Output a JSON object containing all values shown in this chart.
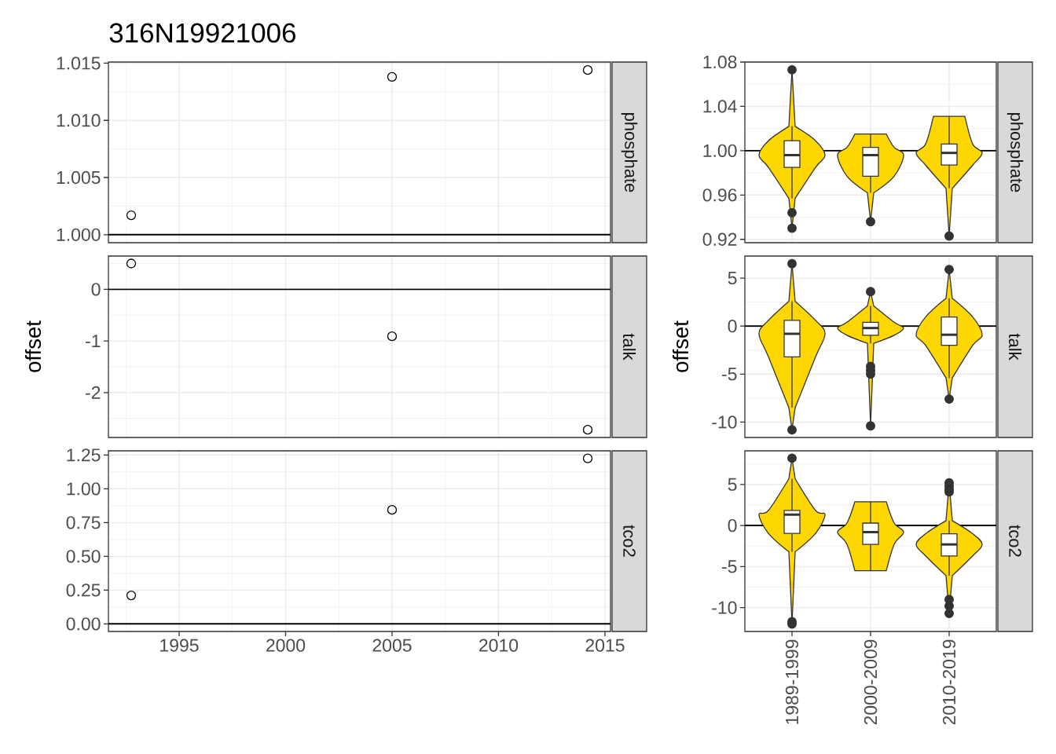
{
  "chart_data": [
    {
      "type": "scatter",
      "title": "316N19921006",
      "y2label": "phosphate",
      "x": [
        1992.75,
        2005.0,
        2014.19
      ],
      "values": [
        1.0017,
        1.0138,
        1.0144
      ],
      "color": "#000000",
      "marker": "circle",
      "xlim": [
        1991.68,
        2015.26
      ],
      "xticks": [
        1995,
        2000,
        2005,
        2010,
        2015
      ],
      "ylim": [
        0.9993,
        1.0151
      ],
      "yticks": [
        {
          "value": 1,
          "label": "1.000"
        },
        1.005,
        {
          "value": 1.01,
          "label": "1.010"
        },
        1.015
      ],
      "grid": true,
      "ref_lines": [
        {
          "axis": "y",
          "value": 1
        }
      ],
      "tick_labels": "y"
    },
    {
      "type": "box",
      "y2label": "phosphate",
      "categories": [
        null,
        null,
        null
      ],
      "color": "#ffffff",
      "boxes": [
        {
          "low": 0.957,
          "q1": 0.985,
          "median": 0.996,
          "q3": 1.009,
          "high": 1.022,
          "outliers": [
            1.073,
            0.944,
            0.93
          ]
        },
        {
          "low": 0.962,
          "q1": 0.977,
          "median": 0.996,
          "q3": 1.003,
          "high": 1.015,
          "outliers": [
            0.936
          ]
        },
        {
          "low": 0.966,
          "q1": 0.987,
          "median": 0.998,
          "q3": 1.006,
          "high": 1.031,
          "outliers": [
            0.923
          ]
        }
      ],
      "ylim": [
        0.917,
        1.08
      ],
      "yticks": [
        0.92,
        0.96,
        {
          "value": 1,
          "label": "1.00"
        },
        1.04,
        1.08
      ],
      "grid": true,
      "ref_lines": [
        {
          "axis": "y",
          "value": 1
        }
      ],
      "tick_labels": "y"
    },
    {
      "type": "scatter",
      "ylabel": "offset",
      "y2label": "talk",
      "x": [
        1992.75,
        2005.0,
        2014.19
      ],
      "values": [
        0.5,
        -0.91,
        -2.72
      ],
      "color": "#000000",
      "marker": "circle",
      "xlim": [
        1991.68,
        2015.26
      ],
      "xticks": [
        1995,
        2000,
        2005,
        2010,
        2015
      ],
      "ylim": [
        -2.87,
        0.645
      ],
      "yticks": [
        -2,
        -1,
        0
      ],
      "grid": true,
      "ref_lines": [
        {
          "axis": "y",
          "value": 0
        }
      ],
      "tick_labels": "y"
    },
    {
      "type": "box",
      "ylabel": "offset",
      "y2label": "talk",
      "categories": [
        null,
        null,
        null
      ],
      "color": "#ffffff",
      "boxes": [
        {
          "low": -8.5,
          "q1": -3.2,
          "median": -0.8,
          "q3": 0.6,
          "high": 2.6,
          "outliers": [
            6.5,
            -10.8
          ]
        },
        {
          "low": -1.8,
          "q1": -0.95,
          "median": -0.2,
          "q3": 0.4,
          "high": 2.1,
          "outliers": [
            3.6,
            -4.2,
            -4.6,
            -5.0,
            -10.4
          ]
        },
        {
          "low": -5.4,
          "q1": -2.0,
          "median": -0.9,
          "q3": 0.95,
          "high": 2.9,
          "outliers": [
            5.9,
            -7.6
          ]
        }
      ],
      "ylim": [
        -11.6,
        7.3
      ],
      "yticks": [
        -10,
        -5,
        0,
        5
      ],
      "grid": true,
      "ref_lines": [
        {
          "axis": "y",
          "value": 0
        }
      ],
      "tick_labels": "y"
    },
    {
      "type": "scatter",
      "y2label": "tco2",
      "x": [
        1992.75,
        2005.0,
        2014.19
      ],
      "values": [
        0.211,
        0.844,
        1.225
      ],
      "color": "#000000",
      "marker": "circle",
      "xlim": [
        1991.68,
        2015.26
      ],
      "xticks": [
        1995,
        2000,
        2005,
        2010,
        2015
      ],
      "ylim": [
        -0.056,
        1.281
      ],
      "yticks": [
        {
          "value": 0,
          "label": "0.00"
        },
        0.25,
        {
          "value": 0.5,
          "label": "0.50"
        },
        0.75,
        {
          "value": 1,
          "label": "1.00"
        },
        1.25
      ],
      "grid": true,
      "ref_lines": [
        {
          "axis": "y",
          "value": 0
        }
      ]
    },
    {
      "type": "box",
      "y2label": "tco2",
      "categories": [
        "1989-1999",
        "2000-2009",
        "2010-2019"
      ],
      "color": "#ffffff",
      "boxes": [
        {
          "low": -3.2,
          "q1": -0.95,
          "median": 1.33,
          "q3": 1.84,
          "high": 5.7,
          "outliers": [
            8.2,
            -11.7,
            -12.0
          ]
        },
        {
          "low": -5.5,
          "q1": -2.3,
          "median": -0.8,
          "q3": 0.3,
          "high": 2.9
        },
        {
          "low": -6.1,
          "q1": -3.7,
          "median": -2.3,
          "q3": -1.0,
          "high": 0.6,
          "outliers": [
            5.2,
            4.8,
            4.4,
            4.1,
            -9.0,
            -9.8,
            -10.7
          ]
        }
      ],
      "ylim": [
        -12.9,
        9.1
      ],
      "yticks": [
        -10,
        -5,
        0,
        5
      ],
      "grid": true,
      "ref_lines": [
        {
          "axis": "y",
          "value": 0
        }
      ]
    }
  ]
}
